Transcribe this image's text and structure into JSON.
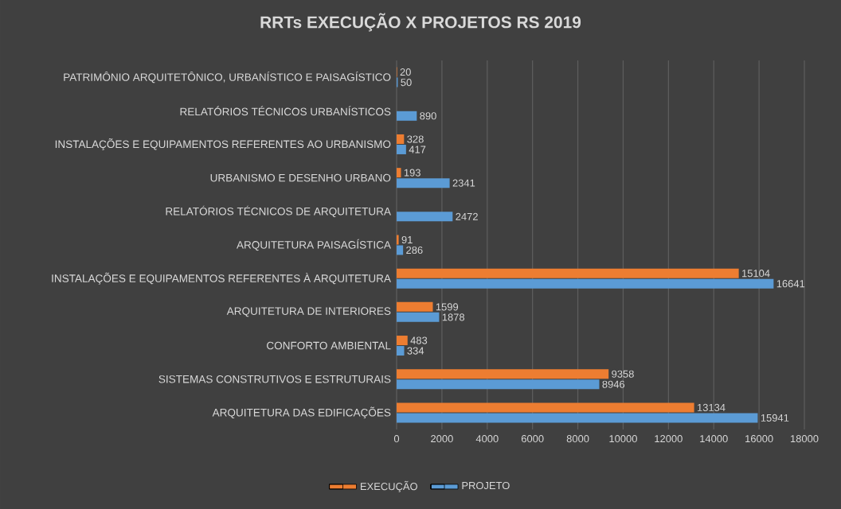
{
  "chart_data": {
    "type": "bar",
    "orientation": "horizontal",
    "title": "RRTs EXECUÇÃO X PROJETOS RS 2019",
    "categories": [
      "PATRIMÔNIO ARQUITETÔNICO, URBANÍSTICO E PAISAGÍSTICO",
      "RELATÓRIOS TÉCNICOS URBANÍSTICOS",
      "INSTALAÇÕES E EQUIPAMENTOS REFERENTES AO URBANISMO",
      "URBANISMO E DESENHO URBANO",
      "RELATÓRIOS TÉCNICOS DE ARQUITETURA",
      "ARQUITETURA PAISAGÍSTICA",
      "INSTALAÇÕES E EQUIPAMENTOS REFERENTES À ARQUITETURA",
      "ARQUITETURA DE INTERIORES",
      "CONFORTO AMBIENTAL",
      "SISTEMAS CONSTRUTIVOS E ESTRUTURAIS",
      "ARQUITETURA DAS EDIFICAÇÕES"
    ],
    "series": [
      {
        "name": "EXECUÇÃO",
        "color": "#ed7d31",
        "values": [
          20,
          null,
          328,
          193,
          null,
          91,
          15104,
          1599,
          483,
          9358,
          13134
        ]
      },
      {
        "name": "PROJETO",
        "color": "#5b9bd5",
        "values": [
          50,
          890,
          417,
          2341,
          2472,
          286,
          16641,
          1878,
          334,
          8946,
          15941
        ]
      }
    ],
    "xlim": [
      0,
      18000
    ],
    "xticks": [
      0,
      2000,
      4000,
      6000,
      8000,
      10000,
      12000,
      14000,
      16000,
      18000
    ],
    "grid": "x",
    "legend": "bottom",
    "data_labels": true
  }
}
